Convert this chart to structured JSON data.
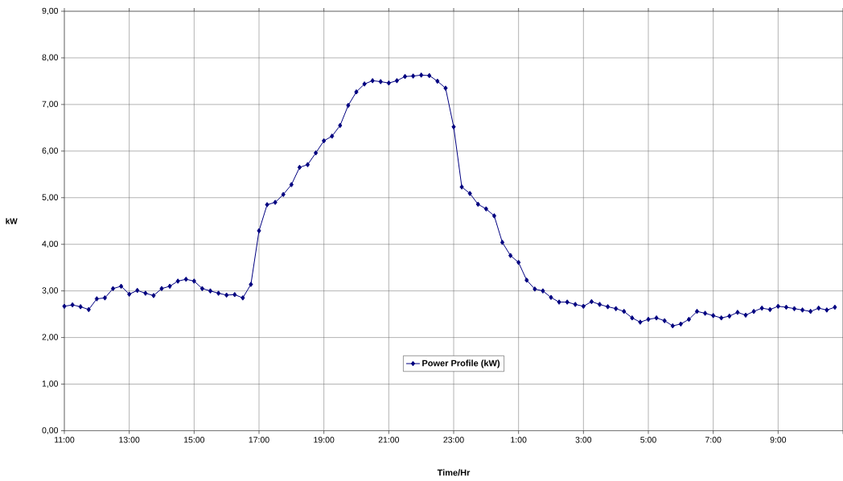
{
  "chart_data": {
    "type": "line",
    "xlabel": "Time/Hr",
    "ylabel": "kW",
    "grid": true,
    "legend": "bottom",
    "marker": "diamond",
    "xlim": [
      "2000-01-01T11:00",
      "2000-01-02T11:00"
    ],
    "ylim": [
      0,
      9
    ],
    "xticks": [
      {
        "value": "2000-01-01T11:00",
        "label": "11:00"
      },
      {
        "value": "2000-01-01T13:00",
        "label": "13:00"
      },
      {
        "value": "2000-01-01T15:00",
        "label": "15:00"
      },
      {
        "value": "2000-01-01T17:00",
        "label": "17:00"
      },
      {
        "value": "2000-01-01T19:00",
        "label": "19:00"
      },
      {
        "value": "2000-01-01T21:00",
        "label": "21:00"
      },
      {
        "value": "2000-01-01T23:00",
        "label": "23:00"
      },
      {
        "value": "2000-01-02T01:00",
        "label": "1:00"
      },
      {
        "value": "2000-01-02T03:00",
        "label": "3:00"
      },
      {
        "value": "2000-01-02T05:00",
        "label": "5:00"
      },
      {
        "value": "2000-01-02T07:00",
        "label": "7:00"
      },
      {
        "value": "2000-01-02T09:00",
        "label": "9:00"
      },
      {
        "value": "2000-01-02T11:00",
        "label": null
      }
    ],
    "yticks": [
      {
        "value": 0,
        "label": "0,00"
      },
      {
        "value": 1,
        "label": "1,00"
      },
      {
        "value": 2,
        "label": "2,00"
      },
      {
        "value": 3,
        "label": "3,00"
      },
      {
        "value": 4,
        "label": "4,00"
      },
      {
        "value": 5,
        "label": "5,00"
      },
      {
        "value": 6,
        "label": "6,00"
      },
      {
        "value": 7,
        "label": "7,00"
      },
      {
        "value": 8,
        "label": "8,00"
      },
      {
        "value": 9,
        "label": "9,00"
      }
    ],
    "x": [
      "2000-01-01T11:00",
      "2000-01-01T11:15",
      "2000-01-01T11:30",
      "2000-01-01T11:45",
      "2000-01-01T12:00",
      "2000-01-01T12:15",
      "2000-01-01T12:30",
      "2000-01-01T12:45",
      "2000-01-01T13:00",
      "2000-01-01T13:15",
      "2000-01-01T13:30",
      "2000-01-01T13:45",
      "2000-01-01T14:00",
      "2000-01-01T14:15",
      "2000-01-01T14:30",
      "2000-01-01T14:45",
      "2000-01-01T15:00",
      "2000-01-01T15:15",
      "2000-01-01T15:30",
      "2000-01-01T15:45",
      "2000-01-01T16:00",
      "2000-01-01T16:15",
      "2000-01-01T16:30",
      "2000-01-01T16:45",
      "2000-01-01T17:00",
      "2000-01-01T17:15",
      "2000-01-01T17:30",
      "2000-01-01T17:45",
      "2000-01-01T18:00",
      "2000-01-01T18:15",
      "2000-01-01T18:30",
      "2000-01-01T18:45",
      "2000-01-01T19:00",
      "2000-01-01T19:15",
      "2000-01-01T19:30",
      "2000-01-01T19:45",
      "2000-01-01T20:00",
      "2000-01-01T20:15",
      "2000-01-01T20:30",
      "2000-01-01T20:45",
      "2000-01-01T21:00",
      "2000-01-01T21:15",
      "2000-01-01T21:30",
      "2000-01-01T21:45",
      "2000-01-01T22:00",
      "2000-01-01T22:15",
      "2000-01-01T22:30",
      "2000-01-01T22:45",
      "2000-01-01T23:00",
      "2000-01-01T23:15",
      "2000-01-01T23:30",
      "2000-01-01T23:45",
      "2000-01-02T00:00",
      "2000-01-02T00:15",
      "2000-01-02T00:30",
      "2000-01-02T00:45",
      "2000-01-02T01:00",
      "2000-01-02T01:15",
      "2000-01-02T01:30",
      "2000-01-02T01:45",
      "2000-01-02T02:00",
      "2000-01-02T02:15",
      "2000-01-02T02:30",
      "2000-01-02T02:45",
      "2000-01-02T03:00",
      "2000-01-02T03:15",
      "2000-01-02T03:30",
      "2000-01-02T03:45",
      "2000-01-02T04:00",
      "2000-01-02T04:15",
      "2000-01-02T04:30",
      "2000-01-02T04:45",
      "2000-01-02T05:00",
      "2000-01-02T05:15",
      "2000-01-02T05:30",
      "2000-01-02T05:45",
      "2000-01-02T06:00",
      "2000-01-02T06:15",
      "2000-01-02T06:30",
      "2000-01-02T06:45",
      "2000-01-02T07:00",
      "2000-01-02T07:15",
      "2000-01-02T07:30",
      "2000-01-02T07:45",
      "2000-01-02T08:00",
      "2000-01-02T08:15",
      "2000-01-02T08:30",
      "2000-01-02T08:45",
      "2000-01-02T09:00",
      "2000-01-02T09:15",
      "2000-01-02T09:30",
      "2000-01-02T09:45",
      "2000-01-02T10:00",
      "2000-01-02T10:15",
      "2000-01-02T10:30",
      "2000-01-02T10:45"
    ],
    "series": [
      {
        "name": "Power Profile (kW)",
        "color": "#000080",
        "values": [
          2.67,
          2.7,
          2.66,
          2.6,
          2.83,
          2.85,
          3.05,
          3.1,
          2.93,
          3.01,
          2.95,
          2.9,
          3.05,
          3.1,
          3.21,
          3.25,
          3.21,
          3.05,
          3.0,
          2.95,
          2.91,
          2.92,
          2.85,
          3.14,
          4.29,
          4.85,
          4.9,
          5.07,
          5.28,
          5.65,
          5.71,
          5.96,
          6.22,
          6.32,
          6.55,
          6.98,
          7.27,
          7.44,
          7.51,
          7.49,
          7.46,
          7.51,
          7.6,
          7.61,
          7.63,
          7.62,
          7.5,
          7.35,
          6.52,
          5.23,
          5.09,
          4.86,
          4.76,
          4.61,
          4.04,
          3.76,
          3.61,
          3.23,
          3.04,
          3.0,
          2.86,
          2.76,
          2.76,
          2.71,
          2.67,
          2.77,
          2.71,
          2.66,
          2.62,
          2.56,
          2.42,
          2.33,
          2.39,
          2.42,
          2.36,
          2.25,
          2.29,
          2.39,
          2.56,
          2.52,
          2.47,
          2.42,
          2.46,
          2.54,
          2.48,
          2.56,
          2.63,
          2.6,
          2.67,
          2.65,
          2.62,
          2.59,
          2.56,
          2.63,
          2.59,
          2.65
        ]
      }
    ]
  }
}
